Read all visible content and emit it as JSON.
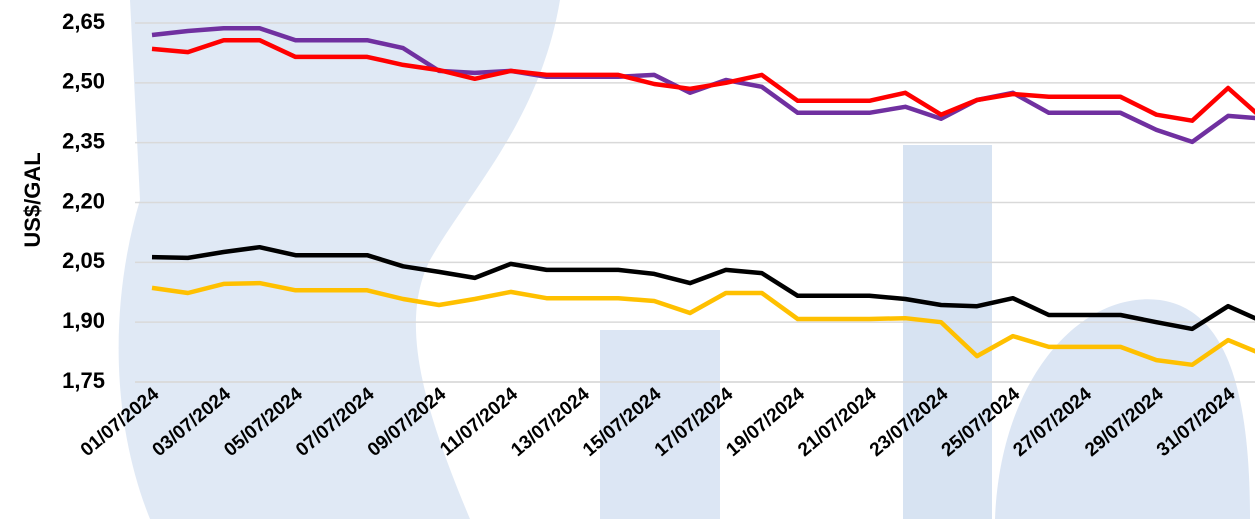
{
  "chart_data": {
    "type": "line",
    "y_label": "US$/GAL",
    "categories": [
      "01/07/2024",
      null,
      "03/07/2024",
      null,
      "05/07/2024",
      null,
      "07/07/2024",
      null,
      "09/07/2024",
      null,
      "11/07/2024",
      null,
      "13/07/2024",
      null,
      "15/07/2024",
      null,
      "17/07/2024",
      null,
      "19/07/2024",
      null,
      "21/07/2024",
      null,
      "23/07/2024",
      null,
      "25/07/2024",
      null,
      "27/07/2024",
      null,
      "29/07/2024",
      null,
      "31/07/2024",
      null
    ],
    "series": [
      {
        "color": "#7030a0",
        "values": [
          2.62,
          2.63,
          2.637,
          2.637,
          2.607,
          2.607,
          2.607,
          2.587,
          2.53,
          2.525,
          2.53,
          2.515,
          2.515,
          2.515,
          2.52,
          2.475,
          2.507,
          2.49,
          2.425,
          2.425,
          2.425,
          2.44,
          2.41,
          2.457,
          2.475,
          2.425,
          2.425,
          2.425,
          2.382,
          2.352,
          2.417,
          2.41
        ]
      },
      {
        "color": "#ff0000",
        "values": [
          2.585,
          2.577,
          2.607,
          2.607,
          2.565,
          2.565,
          2.565,
          2.545,
          2.532,
          2.51,
          2.53,
          2.52,
          2.52,
          2.52,
          2.497,
          2.485,
          2.5,
          2.52,
          2.455,
          2.455,
          2.455,
          2.475,
          2.42,
          2.457,
          2.472,
          2.465,
          2.465,
          2.465,
          2.42,
          2.405,
          2.487,
          2.407
        ]
      },
      {
        "color": "#000000",
        "values": [
          2.063,
          2.061,
          2.076,
          2.088,
          2.068,
          2.068,
          2.068,
          2.04,
          2.026,
          2.011,
          2.046,
          2.031,
          2.031,
          2.031,
          2.021,
          1.998,
          2.031,
          2.023,
          1.966,
          1.966,
          1.966,
          1.958,
          1.943,
          1.94,
          1.96,
          1.918,
          1.918,
          1.918,
          1.9,
          1.883,
          1.94,
          1.9
        ]
      },
      {
        "color": "#ffc000",
        "values": [
          1.986,
          1.973,
          1.996,
          1.998,
          1.98,
          1.98,
          1.98,
          1.958,
          1.943,
          1.958,
          1.976,
          1.96,
          1.96,
          1.96,
          1.953,
          1.923,
          1.973,
          1.973,
          1.908,
          1.908,
          1.908,
          1.91,
          1.9,
          1.815,
          1.865,
          1.838,
          1.838,
          1.838,
          1.805,
          1.793,
          1.855,
          1.818
        ]
      }
    ],
    "ylim": [
      1.75,
      2.65
    ],
    "yticks": [
      {
        "value": 1.75,
        "label": "1,75"
      },
      {
        "value": 1.9,
        "label": "1,90"
      },
      {
        "value": 2.05,
        "label": "2,05"
      },
      {
        "value": 2.2,
        "label": "2,20"
      },
      {
        "value": 2.35,
        "label": "2,35"
      },
      {
        "value": 2.5,
        "label": "2,50"
      },
      {
        "value": 2.65,
        "label": "2,65"
      }
    ],
    "grid": true
  }
}
